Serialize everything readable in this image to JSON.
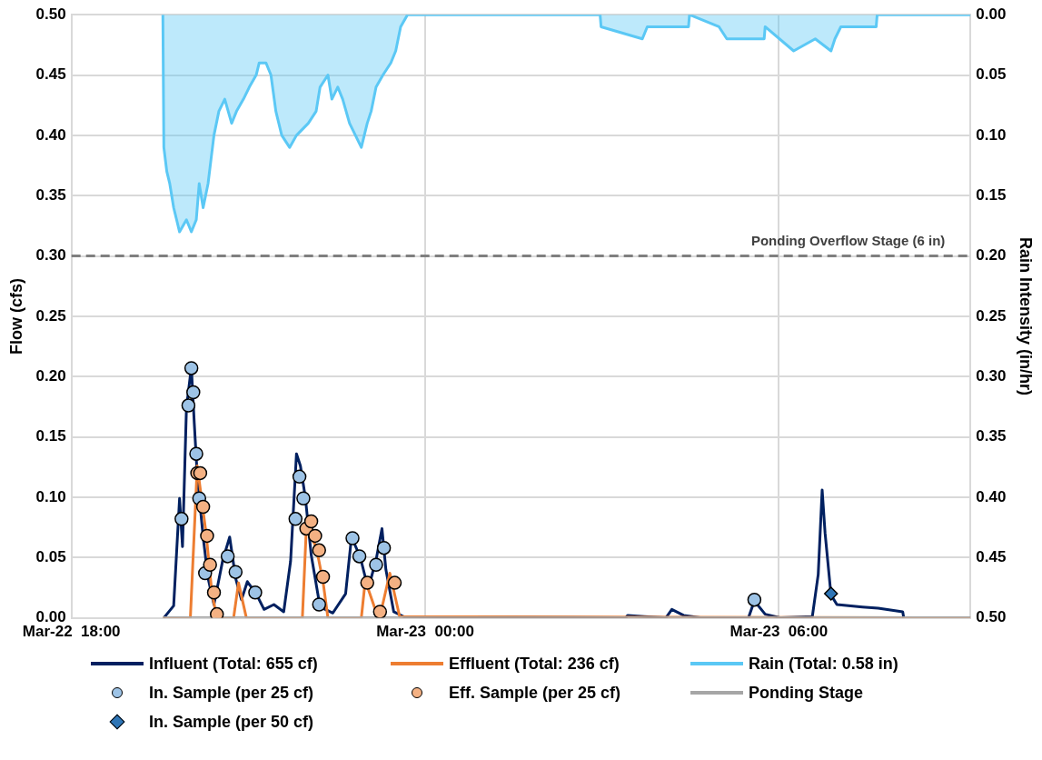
{
  "chart_data": {
    "type": "line",
    "ylabel": "Flow (cfs)",
    "y2label": "Rain Intensity (in/hr)",
    "xlim": [
      "--03-22T18:00",
      "--03-23T09:15"
    ],
    "xticks": [
      {
        "value": "--03-22T18:00",
        "label": "Mar-22  18:00"
      },
      {
        "value": "--03-23T00:00",
        "label": "Mar-23  00:00"
      },
      {
        "value": "--03-23T06:00",
        "label": "Mar-23  06:00"
      }
    ],
    "ylim": [
      0,
      0.5
    ],
    "yticks": [
      {
        "value": 0,
        "label": "0.00"
      },
      {
        "value": 0.05,
        "label": "0.05"
      },
      {
        "value": 0.1,
        "label": "0.10"
      },
      {
        "value": 0.15,
        "label": "0.15"
      },
      {
        "value": 0.2,
        "label": "0.20"
      },
      {
        "value": 0.25,
        "label": "0.25"
      },
      {
        "value": 0.3,
        "label": "0.30"
      },
      {
        "value": 0.35,
        "label": "0.35"
      },
      {
        "value": 0.4,
        "label": "0.40"
      },
      {
        "value": 0.45,
        "label": "0.45"
      },
      {
        "value": 0.5,
        "label": "0.50"
      }
    ],
    "y2lim": [
      0.5,
      0
    ],
    "y2ticks": [
      {
        "value": 0,
        "label": "0.00"
      },
      {
        "value": 0.05,
        "label": "0.05"
      },
      {
        "value": 0.1,
        "label": "0.10"
      },
      {
        "value": 0.15,
        "label": "0.15"
      },
      {
        "value": 0.2,
        "label": "0.20"
      },
      {
        "value": 0.25,
        "label": "0.25"
      },
      {
        "value": 0.3,
        "label": "0.30"
      },
      {
        "value": 0.35,
        "label": "0.35"
      },
      {
        "value": 0.4,
        "label": "0.40"
      },
      {
        "value": 0.45,
        "label": "0.45"
      },
      {
        "value": 0.5,
        "label": "0.50"
      }
    ],
    "grid": true,
    "legend": "bottom",
    "ref_lines": [
      {
        "axis": "y",
        "value": 0.3,
        "label": "Ponding Overflow Stage (6 in)",
        "color": "#7f7f7f",
        "line_style": "dashed"
      }
    ],
    "series": [
      {
        "name": "Influent (Total: 655 cf)",
        "marker": "none",
        "color": "#002060",
        "x": [
          "--03-22T19:34",
          "--03-22T19:44",
          "--03-22T19:50",
          "--03-22T19:53",
          "--03-22T19:57",
          "--03-22T20:02",
          "--03-22T20:05",
          "--03-22T20:08",
          "--03-22T20:14",
          "--03-22T20:19",
          "--03-22T20:25",
          "--03-22T20:34",
          "--03-22T20:41",
          "--03-22T20:47",
          "--03-22T20:53",
          "--03-22T20:59",
          "--03-22T21:08",
          "--03-22T21:16",
          "--03-22T21:26",
          "--03-22T21:36",
          "--03-22T21:43",
          "--03-22T21:49",
          "--03-22T21:53",
          "--03-22T21:58",
          "--03-22T22:04",
          "--03-22T22:13",
          "--03-22T22:26",
          "--03-22T22:39",
          "--03-22T22:45",
          "--03-22T22:54",
          "--03-22T23:02",
          "--03-22T23:10",
          "--03-22T23:16",
          "--03-22T23:20",
          "--03-22T23:28",
          "--03-22T23:38",
          "--03-23T03:24",
          "--03-23T03:26",
          "--03-23T03:43",
          "--03-23T04:05",
          "--03-23T04:11",
          "--03-23T04:23",
          "--03-23T04:40",
          "--03-23T05:29",
          "--03-23T05:35",
          "--03-23T05:46",
          "--03-23T06:02",
          "--03-23T06:34",
          "--03-23T06:40",
          "--03-23T06:44",
          "--03-23T06:47",
          "--03-23T06:53",
          "--03-23T06:59",
          "--03-23T07:25",
          "--03-23T07:41",
          "--03-23T08:06",
          "--03-23T08:07"
        ],
        "values": [
          0,
          0.01,
          0.099,
          0.059,
          0.174,
          0.208,
          0.161,
          0.118,
          0.067,
          0.033,
          0.011,
          0.048,
          0.067,
          0.033,
          0.015,
          0.03,
          0.02,
          0.007,
          0.011,
          0.005,
          0.047,
          0.136,
          0.126,
          0.1,
          0.052,
          0.009,
          0.004,
          0.02,
          0.067,
          0.05,
          0.024,
          0.048,
          0.074,
          0.04,
          0.005,
          0.001,
          0,
          0.002,
          0.001,
          0,
          0.007,
          0.002,
          0,
          0,
          0.014,
          0.003,
          0,
          0.001,
          0.036,
          0.106,
          0.07,
          0.019,
          0.011,
          0.009,
          0.008,
          0.005,
          0
        ]
      },
      {
        "name": "Effluent (Total: 236 cf)",
        "marker": "none",
        "color": "#ed7d31",
        "x": [
          "--03-22T19:33",
          "--03-22T20:01",
          "--03-22T20:08",
          "--03-22T20:17",
          "--03-22T20:23",
          "--03-22T20:28",
          "--03-22T20:45",
          "--03-22T20:50",
          "--03-22T20:58",
          "--03-22T21:55",
          "--03-22T21:59",
          "--03-22T22:09",
          "--03-22T22:16",
          "--03-22T22:21",
          "--03-22T22:55",
          "--03-22T22:59",
          "--03-22T23:10",
          "--03-22T23:15",
          "--03-22T23:24",
          "--03-22T23:34",
          "--03-23T09:15"
        ],
        "values": [
          0,
          0,
          0.126,
          0.07,
          0.02,
          0,
          0,
          0.029,
          0,
          0,
          0.074,
          0.059,
          0.03,
          0,
          0,
          0.031,
          0.005,
          0.005,
          0.037,
          0.001,
          0
        ]
      },
      {
        "name": "Rain (Total: 0.58 in)",
        "type": "area",
        "axis": "y2",
        "marker": "none",
        "color": "#5bc8f5",
        "x": [
          "--03-22T19:33",
          "--03-22T19:34",
          "--03-22T19:37",
          "--03-22T19:40",
          "--03-22T19:44",
          "--03-22T19:47",
          "--03-22T19:50",
          "--03-22T19:57",
          "--03-22T20:02",
          "--03-22T20:07",
          "--03-22T20:10",
          "--03-22T20:14",
          "--03-22T20:19",
          "--03-22T20:22",
          "--03-22T20:25",
          "--03-22T20:30",
          "--03-22T20:36",
          "--03-22T20:43",
          "--03-22T20:48",
          "--03-22T20:55",
          "--03-22T21:01",
          "--03-22T21:08",
          "--03-22T21:11",
          "--03-22T21:18",
          "--03-22T21:23",
          "--03-22T21:28",
          "--03-22T21:34",
          "--03-22T21:42",
          "--03-22T21:49",
          "--03-22T22:01",
          "--03-22T22:09",
          "--03-22T22:13",
          "--03-22T22:21",
          "--03-22T22:25",
          "--03-22T22:31",
          "--03-22T22:36",
          "--03-22T22:43",
          "--03-22T22:49",
          "--03-22T22:55",
          "--03-22T23:01",
          "--03-22T23:05",
          "--03-22T23:10",
          "--03-22T23:17",
          "--03-22T23:25",
          "--03-22T23:30",
          "--03-22T23:35",
          "--03-22T23:42",
          "--03-23T02:58",
          "--03-23T02:59",
          "--03-23T03:41",
          "--03-23T03:46",
          "--03-23T04:28",
          "--03-23T04:29",
          "--03-23T04:59",
          "--03-23T05:07",
          "--03-23T05:45",
          "--03-23T05:46",
          "--03-23T06:15",
          "--03-23T06:37",
          "--03-23T06:53",
          "--03-23T06:57",
          "--03-23T07:03",
          "--03-23T07:39",
          "--03-23T07:40",
          "--03-23T09:15"
        ],
        "values": [
          0,
          0.11,
          0.13,
          0.14,
          0.16,
          0.17,
          0.18,
          0.17,
          0.18,
          0.17,
          0.14,
          0.16,
          0.14,
          0.12,
          0.1,
          0.08,
          0.07,
          0.09,
          0.08,
          0.07,
          0.06,
          0.05,
          0.04,
          0.04,
          0.05,
          0.08,
          0.1,
          0.11,
          0.1,
          0.09,
          0.08,
          0.06,
          0.05,
          0.07,
          0.06,
          0.07,
          0.09,
          0.1,
          0.11,
          0.09,
          0.08,
          0.06,
          0.05,
          0.04,
          0.03,
          0.01,
          0,
          0,
          0.01,
          0.02,
          0.01,
          0.01,
          0,
          0.01,
          0.02,
          0.02,
          0.01,
          0.03,
          0.02,
          0.03,
          0.02,
          0.01,
          0.01,
          0,
          0
        ]
      },
      {
        "name": "In. Sample (per 25 cf)",
        "type": "scatter",
        "marker": "circle",
        "color": "#9dc3e6",
        "x": [
          "--03-22T19:52",
          "--03-22T19:59",
          "--03-22T20:02",
          "--03-22T20:04",
          "--03-22T20:07",
          "--03-22T20:10",
          "--03-22T20:16",
          "--03-22T20:39",
          "--03-22T20:47",
          "--03-22T21:07",
          "--03-22T21:48",
          "--03-22T21:52",
          "--03-22T21:56",
          "--03-22T22:12",
          "--03-22T22:46",
          "--03-22T22:53",
          "--03-22T23:10",
          "--03-22T23:18",
          "--03-23T05:35"
        ],
        "values": [
          0.082,
          0.176,
          0.207,
          0.187,
          0.136,
          0.099,
          0.037,
          0.051,
          0.038,
          0.021,
          0.082,
          0.117,
          0.099,
          0.011,
          0.066,
          0.051,
          0.044,
          0.058,
          0.015
        ]
      },
      {
        "name": "Eff. Sample (per 25 cf)",
        "type": "scatter",
        "marker": "circle",
        "color": "#f4b183",
        "x": [
          "--03-22T20:08",
          "--03-22T20:11",
          "--03-22T20:14",
          "--03-22T20:18",
          "--03-22T20:21",
          "--03-22T20:25",
          "--03-22T20:28",
          "--03-22T21:59",
          "--03-22T22:04",
          "--03-22T22:08",
          "--03-22T22:12",
          "--03-22T22:16",
          "--03-22T23:01",
          "--03-22T23:14",
          "--03-22T23:29"
        ],
        "values": [
          0.12,
          0.12,
          0.092,
          0.068,
          0.044,
          0.021,
          0.003,
          0.074,
          0.08,
          0.068,
          0.056,
          0.034,
          0.029,
          0.005,
          0.029
        ]
      },
      {
        "name": "Ponding Stage",
        "marker": "none",
        "color": "#a6a6a6",
        "x": [
          "--03-22T19:33",
          "--03-23T09:15"
        ],
        "values": [
          0,
          0
        ]
      },
      {
        "name": "In. Sample (per 50 cf)",
        "type": "scatter",
        "marker": "diamond",
        "color": "#2e75b6",
        "x": [
          "--03-23T06:53"
        ],
        "values": [
          0.02
        ]
      }
    ]
  }
}
